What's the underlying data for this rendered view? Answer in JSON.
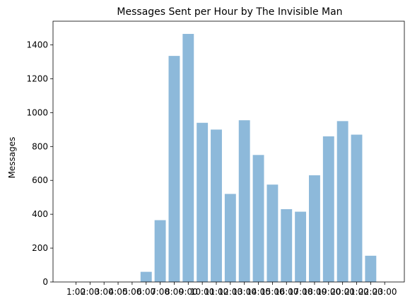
{
  "chart_data": {
    "type": "bar",
    "title": "Messages Sent per Hour by The Invisible Man",
    "xlabel": "",
    "ylabel": "Messages",
    "categories": [
      "1:00",
      "2:00",
      "3:00",
      "4:00",
      "5:00",
      "6:00",
      "7:00",
      "8:00",
      "9:00",
      "10:00",
      "11:00",
      "12:00",
      "13:00",
      "14:00",
      "15:00",
      "16:00",
      "17:00",
      "18:00",
      "19:00",
      "20:00",
      "21:00",
      "22:00",
      "23:00"
    ],
    "values": [
      0,
      0,
      0,
      0,
      0,
      60,
      365,
      1335,
      1465,
      940,
      900,
      520,
      955,
      750,
      575,
      430,
      415,
      630,
      860,
      950,
      870,
      155,
      0
    ],
    "yticks": [
      0,
      200,
      400,
      600,
      800,
      1000,
      1200,
      1400
    ],
    "ylim": [
      0,
      1540
    ],
    "grid": false,
    "bar_color": "#8db9da"
  }
}
